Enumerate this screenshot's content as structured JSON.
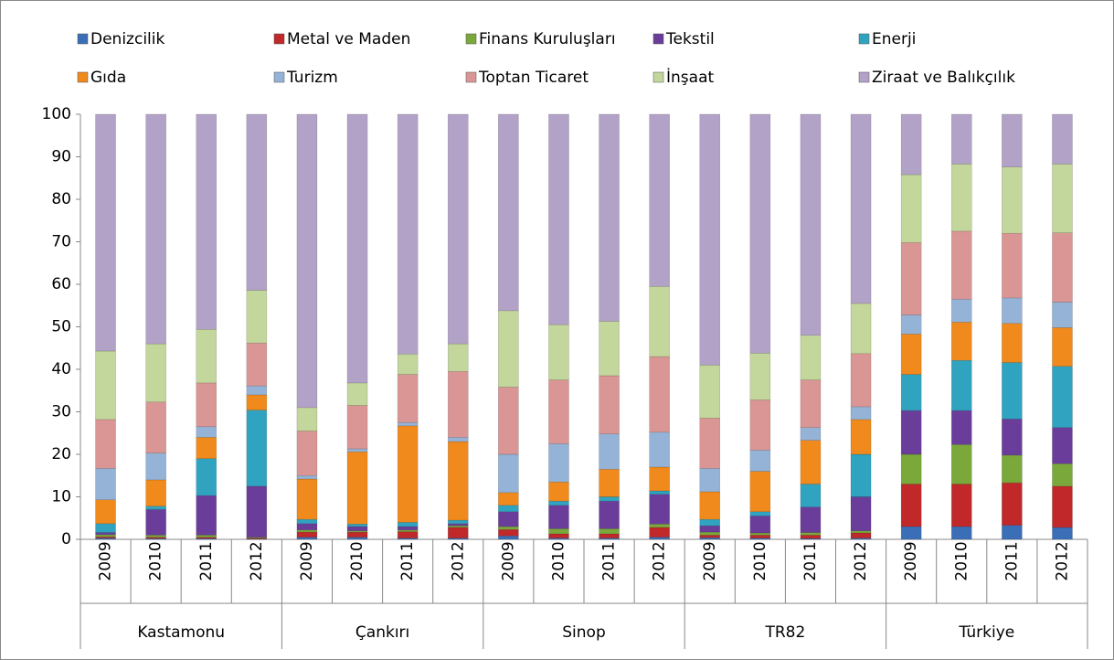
{
  "chart_data": {
    "type": "stacked_bar",
    "categories": [
      "2009",
      "2010",
      "2011",
      "2012",
      "2009",
      "2010",
      "2011",
      "2012",
      "2009",
      "2010",
      "2011",
      "2012",
      "2009",
      "2010",
      "2011",
      "2012",
      "2009",
      "2010",
      "2011",
      "2012"
    ],
    "groups": [
      "Kastamonu",
      "Çankırı",
      "Sinop",
      "TR82",
      "Türkiye"
    ],
    "ylim": [
      0,
      100
    ],
    "yticks": [
      0,
      10,
      20,
      30,
      40,
      50,
      60,
      70,
      80,
      90,
      100
    ],
    "grid": false,
    "legend": "top",
    "series": [
      {
        "name": "Denizcilik",
        "color": "#3a6fb8",
        "values": [
          0.3,
          0.2,
          0.2,
          0.1,
          0.5,
          0.5,
          0.3,
          0.3,
          0.8,
          0.3,
          0.3,
          0.5,
          0.4,
          0.3,
          0.2,
          0.3,
          3,
          3,
          3.3,
          2.8
        ]
      },
      {
        "name": "Metal ve Maden",
        "color": "#c0282a",
        "values": [
          0.3,
          0.3,
          0.3,
          0.2,
          1.2,
          1.2,
          1.5,
          2.5,
          1.5,
          1,
          1,
          2.3,
          0.6,
          0.7,
          0.8,
          1.2,
          10,
          10,
          10,
          9.7
        ]
      },
      {
        "name": "Finans Kuruluşları",
        "color": "#7aa83a",
        "values": [
          0.5,
          0.5,
          0.5,
          0.2,
          0.5,
          0.3,
          0.4,
          0.4,
          0.7,
          1.2,
          1.2,
          0.8,
          0.7,
          0.5,
          0.6,
          0.5,
          7,
          9.3,
          6.5,
          5.3
        ]
      },
      {
        "name": "Tekstil",
        "color": "#6a3d9a",
        "values": [
          0.5,
          6,
          9.3,
          12,
          1.5,
          1,
          0.8,
          0.5,
          3.5,
          5.5,
          6.5,
          7,
          1.5,
          4,
          6,
          8,
          10.3,
          8,
          8.5,
          8.5
        ]
      },
      {
        "name": "Enerji",
        "color": "#2fa3c0",
        "values": [
          2.1,
          0.8,
          8.7,
          17.9,
          1,
          0.6,
          1,
          0.8,
          1.5,
          1,
          1,
          0.8,
          1.5,
          1,
          5.4,
          10,
          8.5,
          11.8,
          13.3,
          14.4
        ]
      },
      {
        "name": "Gıda",
        "color": "#f08a1c",
        "values": [
          5.6,
          6.2,
          5,
          3.6,
          9.5,
          17,
          22.7,
          18.5,
          3,
          4.5,
          6.5,
          5.6,
          6.5,
          9.5,
          10.3,
          8.2,
          9.5,
          9,
          9.2,
          9.1
        ]
      },
      {
        "name": "Turizm",
        "color": "#95b3d7",
        "values": [
          7.4,
          6.3,
          2.5,
          2.1,
          0.8,
          0.7,
          0.8,
          1,
          9,
          9,
          8.3,
          8.2,
          5.5,
          5,
          3,
          3,
          4.5,
          5.4,
          6,
          6
        ]
      },
      {
        "name": "Toptan Ticaret",
        "color": "#d99694",
        "values": [
          11.5,
          12,
          10.3,
          10.1,
          10.5,
          10.2,
          11.3,
          15.5,
          15.8,
          15,
          13.7,
          17.8,
          11.8,
          11.8,
          11.2,
          12.5,
          17,
          16,
          15.2,
          16.3
        ]
      },
      {
        "name": "İnşaat",
        "color": "#c3d69b",
        "values": [
          16.1,
          13.7,
          12.6,
          12.4,
          5.5,
          5.3,
          4.8,
          6.5,
          18,
          13,
          12.8,
          16.5,
          12.5,
          11,
          10.5,
          11.8,
          16,
          15.8,
          15.6,
          16.2
        ]
      },
      {
        "name": "Ziraat ve Balıkçılık",
        "color": "#b3a2c7",
        "values": [
          55.7,
          54,
          50.6,
          41.4,
          69,
          63.2,
          56.4,
          54,
          46.2,
          49.5,
          48.7,
          40.5,
          59,
          56.2,
          52,
          44.5,
          14.2,
          11.7,
          12.4,
          11.7
        ]
      }
    ]
  }
}
